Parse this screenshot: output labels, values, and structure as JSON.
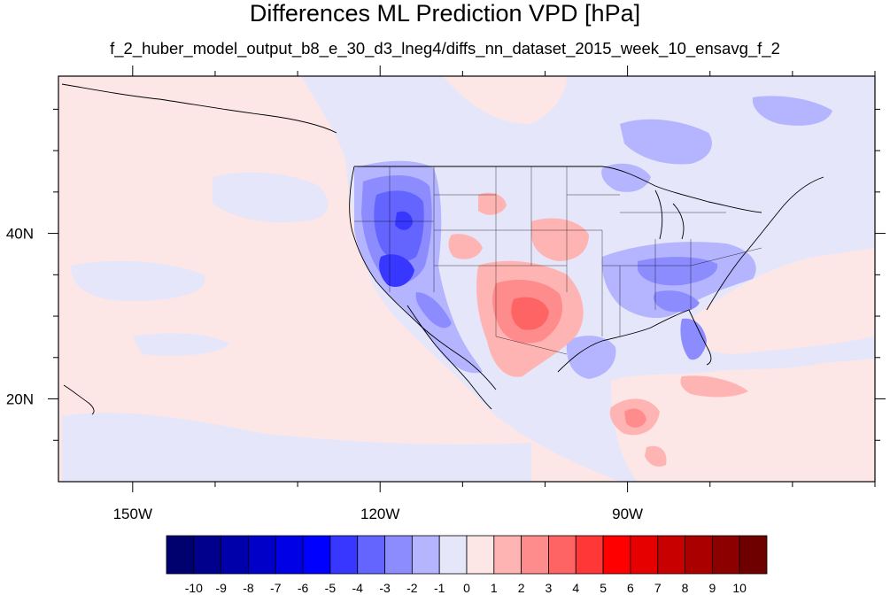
{
  "title": "Differences ML Prediction VPD [hPa]",
  "subtitle": "f_2_huber_model_output_b8_e_30_d3_lneg4/diffs_nn_dataset_2015_week_10_ensavg_f_2",
  "map": {
    "lon_range": [
      -159,
      -60
    ],
    "lat_range": [
      10,
      59
    ],
    "lon_labels": [
      {
        "lon": -150,
        "text": "150W"
      },
      {
        "lon": -120,
        "text": "120W"
      },
      {
        "lon": -90,
        "text": "90W"
      }
    ],
    "lat_labels": [
      {
        "lat": 40,
        "text": "40N"
      },
      {
        "lat": 20,
        "text": "20N"
      }
    ],
    "background_color": "#e6e6fa",
    "ocean_tint_color": "#fde6e6"
  },
  "colorbar": {
    "levels": [
      "-10",
      "-9",
      "-8",
      "-7",
      "-6",
      "-5",
      "-4",
      "-3",
      "-2",
      "-1",
      "0",
      "1",
      "2",
      "3",
      "4",
      "5",
      "6",
      "7",
      "8",
      "9",
      "10"
    ],
    "colors": [
      "#00006e",
      "#00008c",
      "#0000aa",
      "#0000c8",
      "#0000e6",
      "#0000ff",
      "#3737ff",
      "#6464ff",
      "#8c8cff",
      "#b4b4ff",
      "#e6e6fa",
      "#fde6e6",
      "#ffb4b4",
      "#ff8c8c",
      "#ff6464",
      "#ff3737",
      "#ff0000",
      "#e60000",
      "#c80000",
      "#aa0000",
      "#8c0000",
      "#6e0000"
    ]
  }
}
